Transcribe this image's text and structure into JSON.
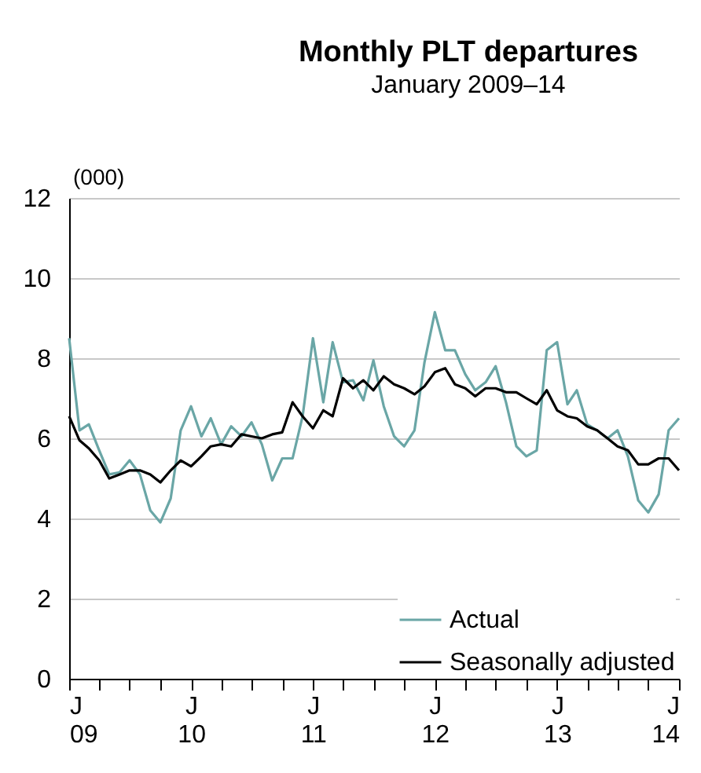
{
  "chart_data": {
    "type": "line",
    "title": "Monthly PLT departures",
    "subtitle": "January  2009–14",
    "ylabel": "(000)",
    "x": [
      "2009-01",
      "2009-02",
      "2009-03",
      "2009-04",
      "2009-05",
      "2009-06",
      "2009-07",
      "2009-08",
      "2009-09",
      "2009-10",
      "2009-11",
      "2009-12",
      "2010-01",
      "2010-02",
      "2010-03",
      "2010-04",
      "2010-05",
      "2010-06",
      "2010-07",
      "2010-08",
      "2010-09",
      "2010-10",
      "2010-11",
      "2010-12",
      "2011-01",
      "2011-02",
      "2011-03",
      "2011-04",
      "2011-05",
      "2011-06",
      "2011-07",
      "2011-08",
      "2011-09",
      "2011-10",
      "2011-11",
      "2011-12",
      "2012-01",
      "2012-02",
      "2012-03",
      "2012-04",
      "2012-05",
      "2012-06",
      "2012-07",
      "2012-08",
      "2012-09",
      "2012-10",
      "2012-11",
      "2012-12",
      "2013-01",
      "2013-02",
      "2013-03",
      "2013-04",
      "2013-05",
      "2013-06",
      "2013-07",
      "2013-08",
      "2013-09",
      "2013-10",
      "2013-11",
      "2013-12",
      "2014-01"
    ],
    "series": [
      {
        "name": "Actual",
        "color": "#6aa6a6",
        "values": [
          8.5,
          6.2,
          6.35,
          5.7,
          5.1,
          5.15,
          5.45,
          5.1,
          4.2,
          3.9,
          4.5,
          6.2,
          6.8,
          6.05,
          6.5,
          5.85,
          6.3,
          6.05,
          6.4,
          5.85,
          4.95,
          5.5,
          5.5,
          6.55,
          8.5,
          6.9,
          8.4,
          7.4,
          7.45,
          6.95,
          7.95,
          6.8,
          6.05,
          5.8,
          6.2,
          7.9,
          9.15,
          8.2,
          8.2,
          7.6,
          7.2,
          7.4,
          7.8,
          6.9,
          5.8,
          5.55,
          5.7,
          8.2,
          8.4,
          6.85,
          7.2,
          6.35,
          6.2,
          6.0,
          6.2,
          5.55,
          4.45,
          4.15,
          4.6,
          6.2,
          6.5
        ]
      },
      {
        "name": "Seasonally adjusted",
        "color": "#000000",
        "values": [
          6.55,
          5.95,
          5.75,
          5.45,
          5.0,
          5.1,
          5.2,
          5.2,
          5.1,
          4.9,
          5.2,
          5.45,
          5.3,
          5.55,
          5.8,
          5.85,
          5.8,
          6.1,
          6.05,
          6.0,
          6.1,
          6.15,
          6.9,
          6.55,
          6.25,
          6.7,
          6.55,
          7.5,
          7.25,
          7.45,
          7.2,
          7.55,
          7.35,
          7.25,
          7.1,
          7.3,
          7.65,
          7.75,
          7.35,
          7.25,
          7.05,
          7.25,
          7.25,
          7.15,
          7.15,
          7.0,
          6.85,
          7.2,
          6.7,
          6.55,
          6.5,
          6.3,
          6.2,
          6.0,
          5.8,
          5.7,
          5.35,
          5.35,
          5.5,
          5.5,
          5.2
        ]
      }
    ],
    "xlim": [
      "2009-01",
      "2014-01"
    ],
    "xticks": [
      {
        "value": "2009-01",
        "label": "J\n09"
      },
      {
        "value": "2009-04",
        "label": null
      },
      {
        "value": "2009-07",
        "label": null
      },
      {
        "value": "2009-10",
        "label": null
      },
      {
        "value": "2010-01",
        "label": "J\n10"
      },
      {
        "value": "2010-04",
        "label": null
      },
      {
        "value": "2010-07",
        "label": null
      },
      {
        "value": "2010-10",
        "label": null
      },
      {
        "value": "2011-01",
        "label": "J\n11"
      },
      {
        "value": "2011-04",
        "label": null
      },
      {
        "value": "2011-07",
        "label": null
      },
      {
        "value": "2011-10",
        "label": null
      },
      {
        "value": "2012-01",
        "label": "J\n12"
      },
      {
        "value": "2012-04",
        "label": null
      },
      {
        "value": "2012-07",
        "label": null
      },
      {
        "value": "2012-10",
        "label": null
      },
      {
        "value": "2013-01",
        "label": "J\n13"
      },
      {
        "value": "2013-04",
        "label": null
      },
      {
        "value": "2013-07",
        "label": null
      },
      {
        "value": "2013-10",
        "label": null
      },
      {
        "value": "2014-01",
        "label": "J\n14"
      }
    ],
    "ylim": [
      0,
      12
    ],
    "yticks": [
      0,
      2,
      4,
      6,
      8,
      10,
      12
    ],
    "grid": "y",
    "legend": "bottom right"
  }
}
